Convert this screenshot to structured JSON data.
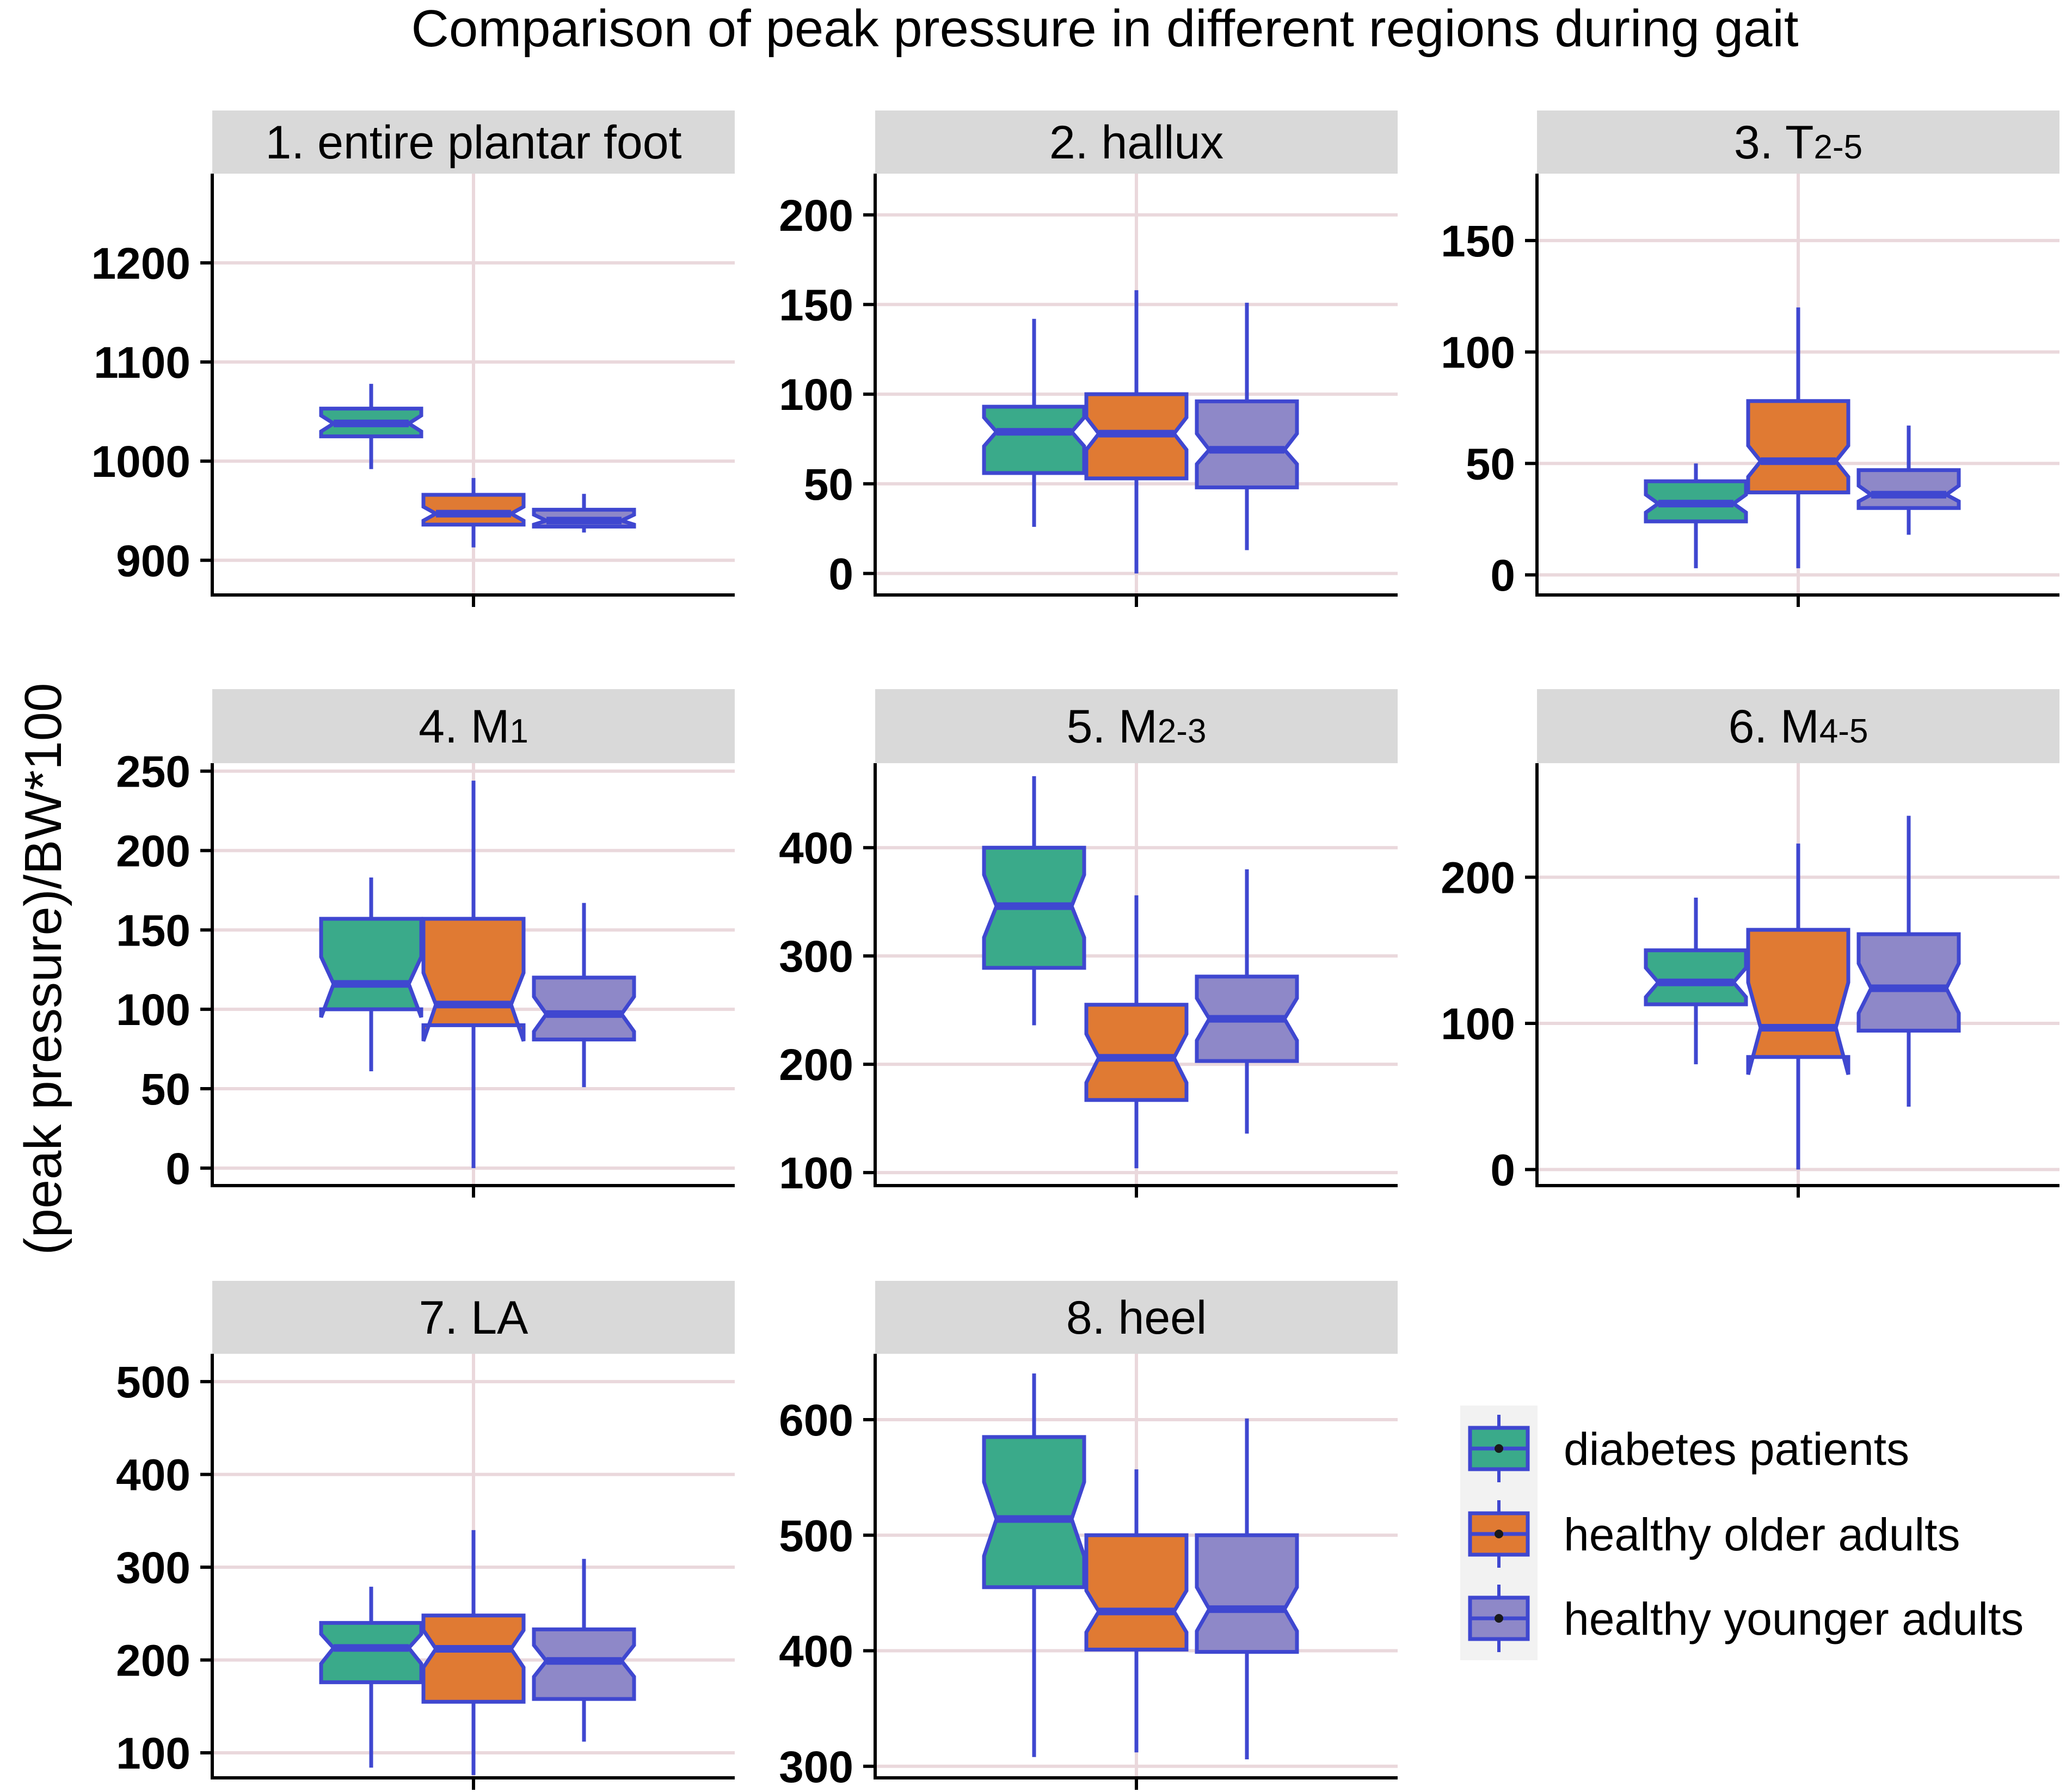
{
  "title": "Comparison of peak pressure in different regions during gait",
  "ylabel": "(peak pressure)/BW*100",
  "legend": {
    "position": "bottom-right",
    "items": [
      {
        "name": "diabetes patients",
        "color": "#3AAA8A"
      },
      {
        "name": "healthy older adults",
        "color": "#E07A33"
      },
      {
        "name": "healthy younger adults",
        "color": "#8E88C8"
      }
    ]
  },
  "colors": {
    "outline": "#3F47D0",
    "strip_bg": "#D9D9D9",
    "grid": "#EAD8DC"
  },
  "chart_data": [
    {
      "type": "boxplot",
      "panel": "1",
      "title": "1. entire plantar foot",
      "title_main": "1. entire plantar foot",
      "title_sub": "",
      "ylim": [
        865,
        1290
      ],
      "yticks": [
        900,
        1000,
        1100,
        1200
      ],
      "tick_labels": [
        "900",
        "1000",
        "1100",
        "1200"
      ],
      "series": [
        {
          "name": "diabetes patients",
          "min": 992,
          "q1": 1025,
          "median": 1038,
          "q3": 1053,
          "max": 1078,
          "notch_lo": 1030,
          "notch_hi": 1046
        },
        {
          "name": "healthy older adults",
          "min": 913,
          "q1": 936,
          "median": 947,
          "q3": 966,
          "max": 983,
          "notch_lo": 940,
          "notch_hi": 954
        },
        {
          "name": "healthy younger adults",
          "min": 928,
          "q1": 934,
          "median": 940,
          "q3": 951,
          "max": 967,
          "notch_lo": 936,
          "notch_hi": 946
        }
      ]
    },
    {
      "type": "boxplot",
      "panel": "2",
      "title": "2. hallux",
      "title_main": "2. hallux",
      "title_sub": "",
      "ylim": [
        -12,
        223
      ],
      "yticks": [
        0,
        50,
        100,
        150,
        200
      ],
      "tick_labels": [
        "0",
        "50",
        "100",
        "150",
        "200"
      ],
      "series": [
        {
          "name": "diabetes patients",
          "min": 26,
          "q1": 56,
          "median": 79,
          "q3": 93,
          "max": 142,
          "notch_lo": 71,
          "notch_hi": 87
        },
        {
          "name": "healthy older adults",
          "min": 0,
          "q1": 53,
          "median": 78,
          "q3": 100,
          "max": 158,
          "notch_lo": 69,
          "notch_hi": 87
        },
        {
          "name": "healthy younger adults",
          "min": 13,
          "q1": 48,
          "median": 69,
          "q3": 96,
          "max": 151,
          "notch_lo": 61,
          "notch_hi": 78
        }
      ]
    },
    {
      "type": "boxplot",
      "panel": "3",
      "title": "3. T2-5",
      "title_main": "3. T",
      "title_sub": "2-5",
      "ylim": [
        -9,
        180
      ],
      "yticks": [
        0,
        50,
        100,
        150
      ],
      "tick_labels": [
        "0",
        "50",
        "100",
        "150"
      ],
      "series": [
        {
          "name": "diabetes patients",
          "min": 3,
          "q1": 24,
          "median": 32,
          "q3": 42,
          "max": 50,
          "notch_lo": 28,
          "notch_hi": 36
        },
        {
          "name": "healthy older adults",
          "min": 3,
          "q1": 37,
          "median": 51,
          "q3": 78,
          "max": 120,
          "notch_lo": 44,
          "notch_hi": 58
        },
        {
          "name": "healthy younger adults",
          "min": 18,
          "q1": 30,
          "median": 36,
          "q3": 47,
          "max": 67,
          "notch_lo": 33,
          "notch_hi": 40
        }
      ]
    },
    {
      "type": "boxplot",
      "panel": "4",
      "title": "4. M1",
      "title_main": "4. M",
      "title_sub": "1",
      "ylim": [
        -11,
        255
      ],
      "yticks": [
        0,
        50,
        100,
        150,
        200,
        250
      ],
      "tick_labels": [
        "0",
        "50",
        "100",
        "150",
        "200",
        "250"
      ],
      "series": [
        {
          "name": "diabetes patients",
          "min": 61,
          "q1": 100,
          "median": 116,
          "q3": 157,
          "max": 183,
          "notch_lo": 95,
          "notch_hi": 133
        },
        {
          "name": "healthy older adults",
          "min": 0,
          "q1": 90,
          "median": 103,
          "q3": 157,
          "max": 244,
          "notch_lo": 80,
          "notch_hi": 123
        },
        {
          "name": "healthy younger adults",
          "min": 51,
          "q1": 81,
          "median": 97,
          "q3": 120,
          "max": 167,
          "notch_lo": 86,
          "notch_hi": 108
        }
      ]
    },
    {
      "type": "boxplot",
      "panel": "5",
      "title": "5. M2-3",
      "title_main": "5. M",
      "title_sub": "2-3",
      "ylim": [
        88,
        478
      ],
      "yticks": [
        100,
        200,
        300,
        400
      ],
      "tick_labels": [
        "100",
        "200",
        "300",
        "400"
      ],
      "series": [
        {
          "name": "diabetes patients",
          "min": 236,
          "q1": 289,
          "median": 346,
          "q3": 400,
          "max": 466,
          "notch_lo": 317,
          "notch_hi": 375
        },
        {
          "name": "healthy older adults",
          "min": 104,
          "q1": 167,
          "median": 206,
          "q3": 255,
          "max": 356,
          "notch_lo": 183,
          "notch_hi": 228
        },
        {
          "name": "healthy younger adults",
          "min": 136,
          "q1": 203,
          "median": 242,
          "q3": 281,
          "max": 380,
          "notch_lo": 222,
          "notch_hi": 261
        }
      ]
    },
    {
      "type": "boxplot",
      "panel": "6",
      "title": "6. M4-5",
      "title_main": "6. M",
      "title_sub": "4-5",
      "ylim": [
        -11,
        278
      ],
      "yticks": [
        0,
        100,
        200
      ],
      "tick_labels": [
        "0",
        "100",
        "200"
      ],
      "series": [
        {
          "name": "diabetes patients",
          "min": 72,
          "q1": 113,
          "median": 128,
          "q3": 150,
          "max": 186,
          "notch_lo": 118,
          "notch_hi": 138
        },
        {
          "name": "healthy older adults",
          "min": 0,
          "q1": 77,
          "median": 97,
          "q3": 164,
          "max": 223,
          "notch_lo": 65,
          "notch_hi": 128
        },
        {
          "name": "healthy younger adults",
          "min": 43,
          "q1": 95,
          "median": 124,
          "q3": 161,
          "max": 242,
          "notch_lo": 107,
          "notch_hi": 141
        }
      ]
    },
    {
      "type": "boxplot",
      "panel": "7",
      "title": "7. LA",
      "title_main": "7. LA",
      "title_sub": "",
      "ylim": [
        73,
        530
      ],
      "yticks": [
        100,
        200,
        300,
        400,
        500
      ],
      "tick_labels": [
        "100",
        "200",
        "300",
        "400",
        "500"
      ],
      "series": [
        {
          "name": "diabetes patients",
          "min": 84,
          "q1": 176,
          "median": 213,
          "q3": 240,
          "max": 279,
          "notch_lo": 196,
          "notch_hi": 228
        },
        {
          "name": "healthy older adults",
          "min": 76,
          "q1": 155,
          "median": 212,
          "q3": 248,
          "max": 340,
          "notch_lo": 192,
          "notch_hi": 232
        },
        {
          "name": "healthy younger adults",
          "min": 112,
          "q1": 158,
          "median": 199,
          "q3": 233,
          "max": 309,
          "notch_lo": 182,
          "notch_hi": 216
        }
      ]
    },
    {
      "type": "boxplot",
      "panel": "8",
      "title": "8. heel",
      "title_main": "8. heel",
      "title_sub": "",
      "ylim": [
        290,
        657
      ],
      "yticks": [
        300,
        400,
        500,
        600
      ],
      "tick_labels": [
        "300",
        "400",
        "500",
        "600"
      ],
      "series": [
        {
          "name": "diabetes patients",
          "min": 308,
          "q1": 455,
          "median": 514,
          "q3": 585,
          "max": 640,
          "notch_lo": 482,
          "notch_hi": 546
        },
        {
          "name": "healthy older adults",
          "min": 312,
          "q1": 401,
          "median": 434,
          "q3": 500,
          "max": 557,
          "notch_lo": 416,
          "notch_hi": 452
        },
        {
          "name": "healthy younger adults",
          "min": 306,
          "q1": 399,
          "median": 436,
          "q3": 500,
          "max": 601,
          "notch_lo": 417,
          "notch_hi": 455
        }
      ]
    }
  ]
}
